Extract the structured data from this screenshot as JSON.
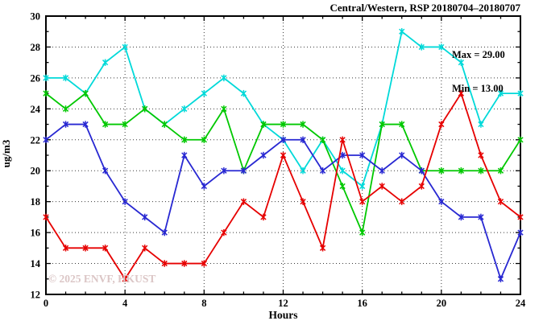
{
  "chart_data": {
    "type": "line",
    "title": "Central/Western, RSP 20180704–20180707",
    "xlabel": "Hours",
    "ylabel": "ug/m3",
    "xlim": [
      0,
      24
    ],
    "ylim": [
      12,
      30
    ],
    "x_major_ticks": [
      0,
      4,
      8,
      12,
      16,
      20,
      24
    ],
    "x_minor_step": 1,
    "y_major_ticks": [
      12,
      14,
      16,
      18,
      20,
      22,
      24,
      26,
      28,
      30
    ],
    "y_minor_step": 1,
    "grid": "dotted",
    "legend_position": "none",
    "annotations": {
      "max_label": "Max = 29.00",
      "min_label": "Min = 13.00"
    },
    "watermark": "© 2025 ENVF, HKUST",
    "x": [
      0,
      1,
      2,
      3,
      4,
      5,
      6,
      7,
      8,
      9,
      10,
      11,
      12,
      13,
      14,
      15,
      16,
      17,
      18,
      19,
      20,
      21,
      22,
      23,
      24
    ],
    "series": [
      {
        "name": "day-cyan",
        "color": "#00d9d9",
        "values": [
          26,
          26,
          25,
          27,
          28,
          24,
          23,
          24,
          25,
          26,
          25,
          23,
          22,
          20,
          22,
          20,
          19,
          23,
          29,
          28,
          28,
          27,
          23,
          25,
          25
        ]
      },
      {
        "name": "day-green",
        "color": "#00c800",
        "values": [
          25,
          24,
          25,
          23,
          23,
          24,
          23,
          22,
          22,
          24,
          20,
          23,
          23,
          23,
          22,
          19,
          16,
          23,
          23,
          20,
          20,
          20,
          20,
          20,
          22
        ]
      },
      {
        "name": "day-blue",
        "color": "#2828d2",
        "values": [
          22,
          23,
          23,
          20,
          18,
          17,
          16,
          21,
          19,
          20,
          20,
          21,
          22,
          22,
          20,
          21,
          21,
          20,
          21,
          20,
          18,
          17,
          17,
          13,
          16
        ]
      },
      {
        "name": "day-red",
        "color": "#e60000",
        "values": [
          17,
          15,
          15,
          15,
          13,
          15,
          14,
          14,
          14,
          16,
          18,
          17,
          21,
          18,
          15,
          22,
          18,
          19,
          18,
          19,
          23,
          25,
          21,
          18,
          17
        ]
      }
    ],
    "frame_color": "#000000",
    "tick_label_color": "#000000"
  }
}
